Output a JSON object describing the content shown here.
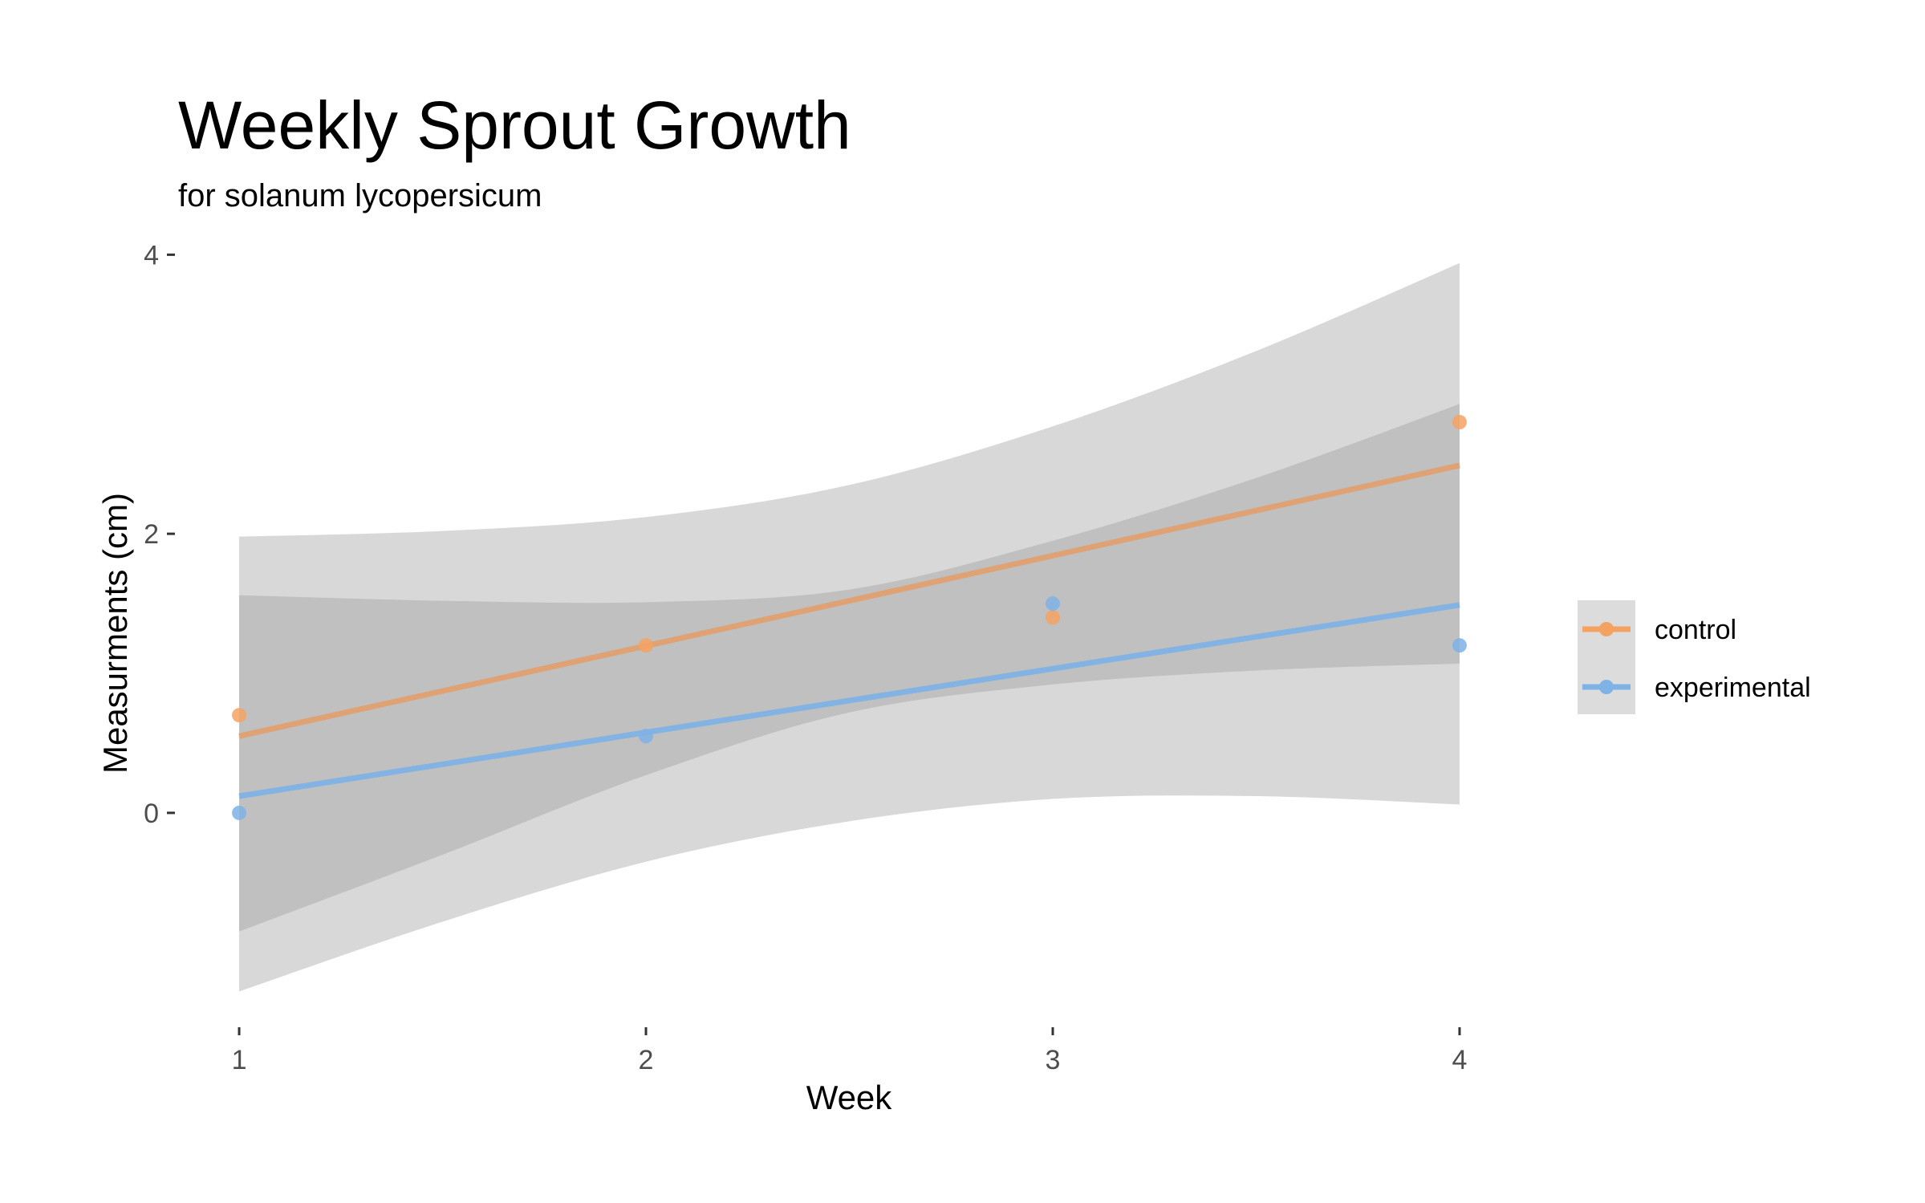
{
  "chart_data": {
    "type": "line",
    "title": "Weekly Sprout Growth",
    "subtitle": "for  solanum lycopersicum",
    "xlabel": "Week",
    "ylabel": "Measurments (cm)",
    "xlim": [
      0.85,
      4.15
    ],
    "ylim": [
      -1.45,
      4.1
    ],
    "x_ticks": [
      1,
      2,
      3,
      4
    ],
    "y_ticks": [
      0,
      2,
      4
    ],
    "grid": false,
    "legend_position": "right",
    "series": [
      {
        "name": "control",
        "color": "#f4a261",
        "line_color": "#e0a070",
        "points": [
          [
            1,
            0.7
          ],
          [
            2,
            1.2
          ],
          [
            3,
            1.4
          ],
          [
            4,
            2.8
          ]
        ],
        "fit": [
          [
            1,
            0.55
          ],
          [
            4,
            2.49
          ]
        ],
        "ci_upper": [
          [
            1,
            1.56
          ],
          [
            1.5,
            1.52
          ],
          [
            2,
            1.51
          ],
          [
            2.5,
            1.6
          ],
          [
            3,
            1.95
          ],
          [
            3.5,
            2.4
          ],
          [
            4,
            2.93
          ]
        ],
        "ci_lower": [
          [
            1,
            -0.85
          ],
          [
            1.5,
            -0.3
          ],
          [
            2,
            0.27
          ],
          [
            2.5,
            0.72
          ],
          [
            3,
            0.92
          ],
          [
            3.5,
            1.02
          ],
          [
            4,
            1.07
          ]
        ]
      },
      {
        "name": "experimental",
        "color": "#7fb2e5",
        "line_color": "#7fb2e5",
        "points": [
          [
            1,
            0.0
          ],
          [
            2,
            0.55
          ],
          [
            3,
            1.5
          ],
          [
            4,
            1.2
          ]
        ],
        "fit": [
          [
            1,
            0.12
          ],
          [
            4,
            1.49
          ]
        ],
        "ci_upper": [
          [
            1,
            1.98
          ],
          [
            1.5,
            2.02
          ],
          [
            2,
            2.12
          ],
          [
            2.5,
            2.35
          ],
          [
            3,
            2.77
          ],
          [
            3.5,
            3.31
          ],
          [
            4,
            3.94
          ]
        ],
        "ci_lower": [
          [
            1,
            -1.28
          ],
          [
            1.5,
            -0.78
          ],
          [
            2,
            -0.35
          ],
          [
            2.5,
            -0.06
          ],
          [
            3,
            0.1
          ],
          [
            3.5,
            0.12
          ],
          [
            4,
            0.06
          ]
        ]
      }
    ]
  }
}
